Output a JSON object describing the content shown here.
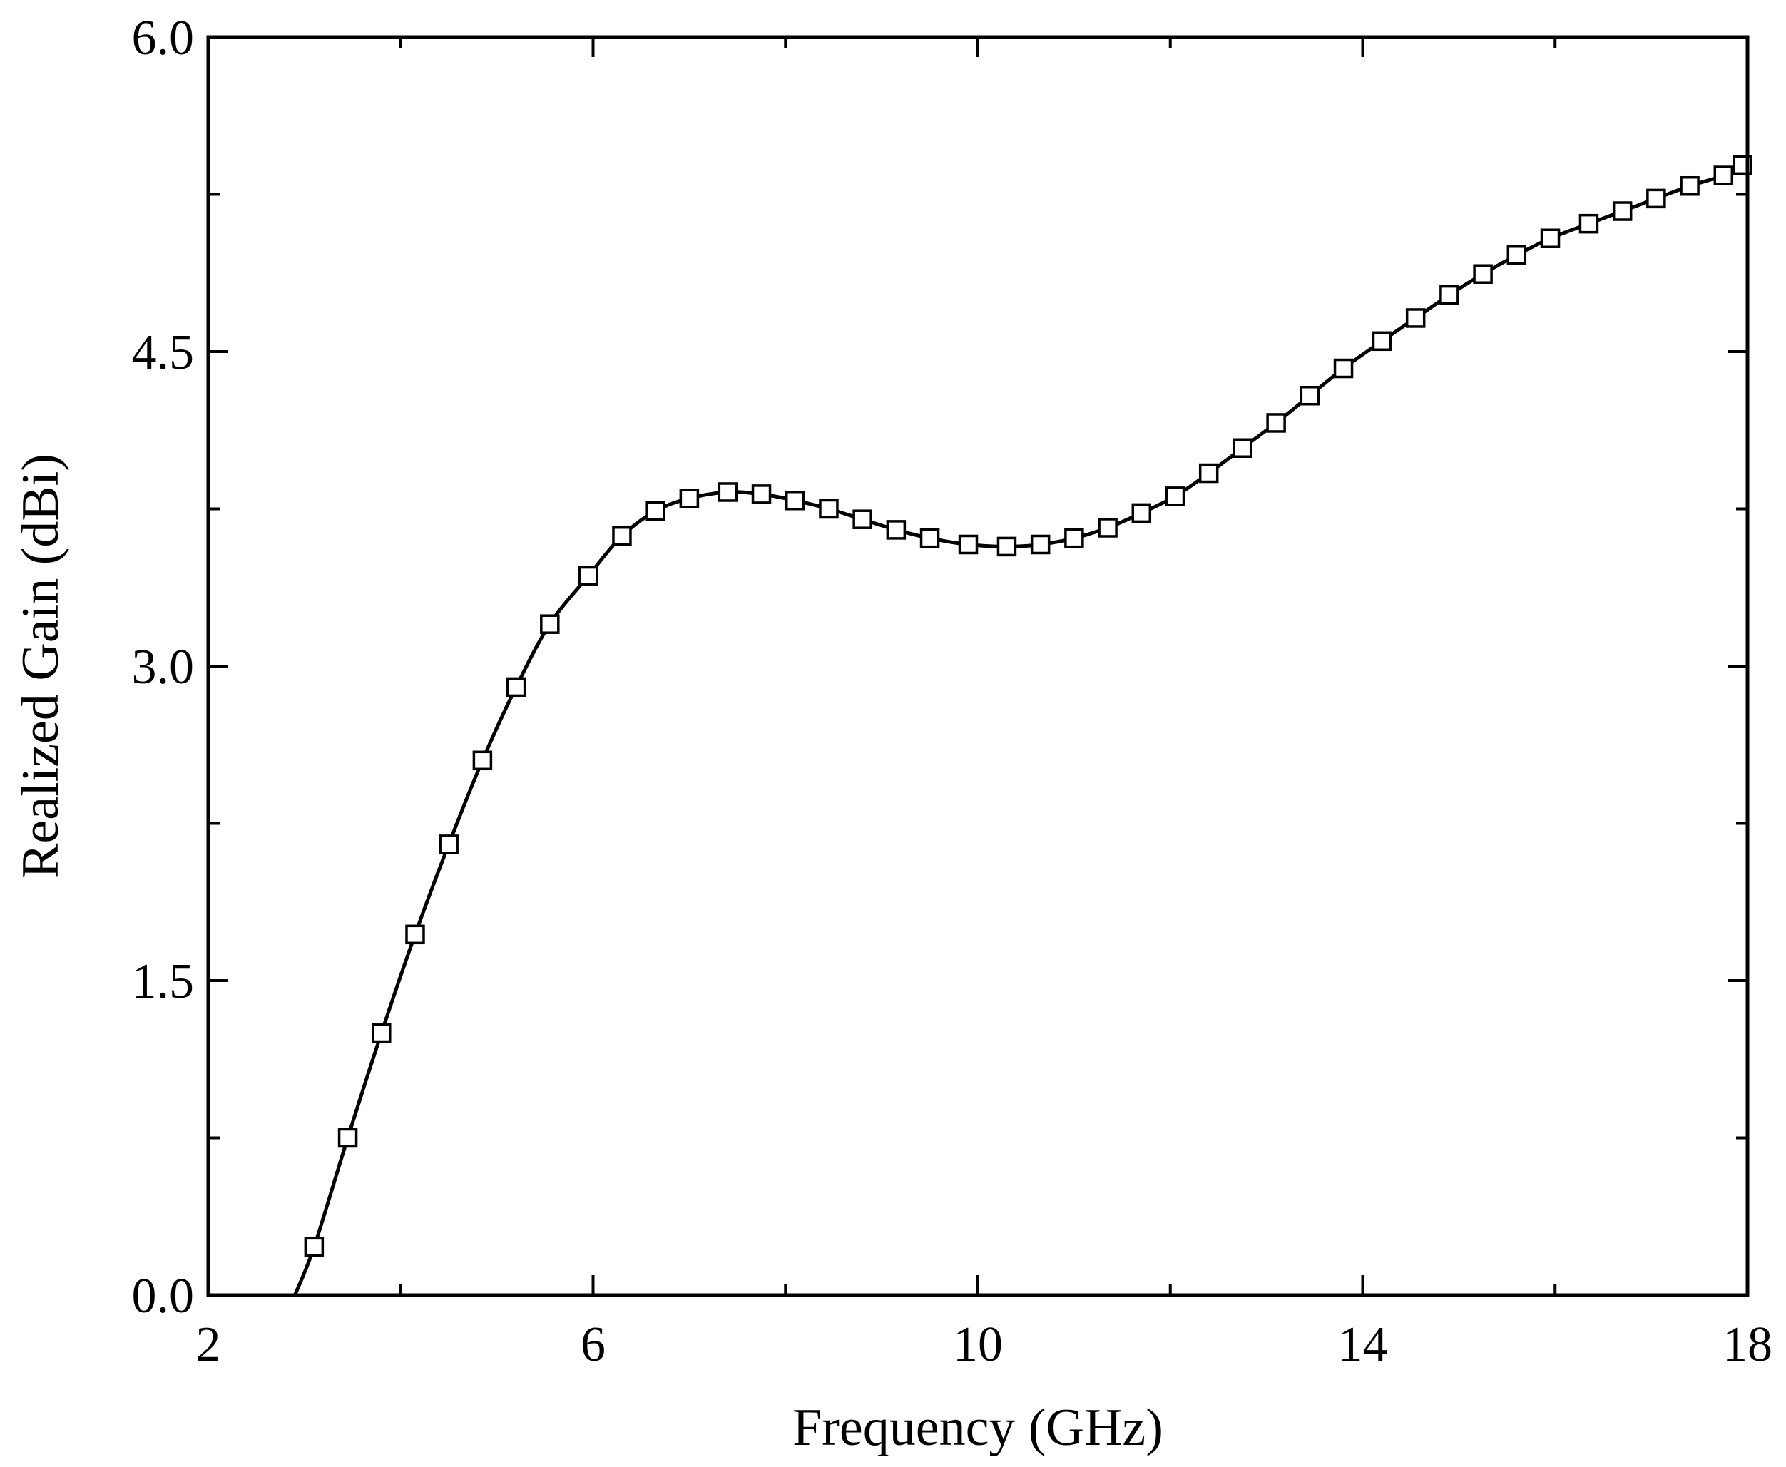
{
  "chart_data": {
    "type": "line",
    "xlabel": "Frequency (GHz)",
    "ylabel": "Realized Gain (dBi)",
    "xlim": [
      2,
      18
    ],
    "ylim": [
      0.0,
      6.0
    ],
    "x_ticks": [
      2,
      6,
      10,
      14,
      18
    ],
    "x_tick_labels": [
      "2",
      "6",
      "10",
      "14",
      "18"
    ],
    "x_minor_ticks": [
      4,
      8,
      12,
      16
    ],
    "y_ticks": [
      0.0,
      1.5,
      3.0,
      4.5,
      6.0
    ],
    "y_tick_labels": [
      "0.0",
      "1.5",
      "3.0",
      "4.5",
      "6.0"
    ],
    "y_minor_ticks": [
      0.75,
      2.25,
      3.75,
      5.25
    ],
    "grid": false,
    "legend": "none",
    "line_color": "#000000",
    "marker": "open-square",
    "series": [
      {
        "x": [
          2.9,
          3.1,
          3.45,
          3.8,
          4.15,
          4.5,
          4.85,
          5.2,
          5.55,
          5.95,
          6.3,
          6.65,
          7.0,
          7.4,
          7.75,
          8.1,
          8.45,
          8.8,
          9.15,
          9.5,
          9.9,
          10.3,
          10.65,
          11.0,
          11.35,
          11.7,
          12.05,
          12.4,
          12.75,
          13.1,
          13.45,
          13.8,
          14.2,
          14.55,
          14.9,
          15.25,
          15.6,
          15.95,
          16.35,
          16.7,
          17.05,
          17.4,
          17.75,
          17.95
        ],
        "y": [
          0.0,
          0.23,
          0.75,
          1.25,
          1.72,
          2.15,
          2.55,
          2.9,
          3.2,
          3.43,
          3.62,
          3.74,
          3.8,
          3.83,
          3.82,
          3.79,
          3.75,
          3.7,
          3.65,
          3.61,
          3.58,
          3.57,
          3.58,
          3.61,
          3.66,
          3.73,
          3.81,
          3.92,
          4.04,
          4.16,
          4.29,
          4.42,
          4.55,
          4.66,
          4.77,
          4.87,
          4.96,
          5.04,
          5.11,
          5.17,
          5.23,
          5.29,
          5.34,
          5.39
        ],
        "markers": true
      }
    ]
  }
}
